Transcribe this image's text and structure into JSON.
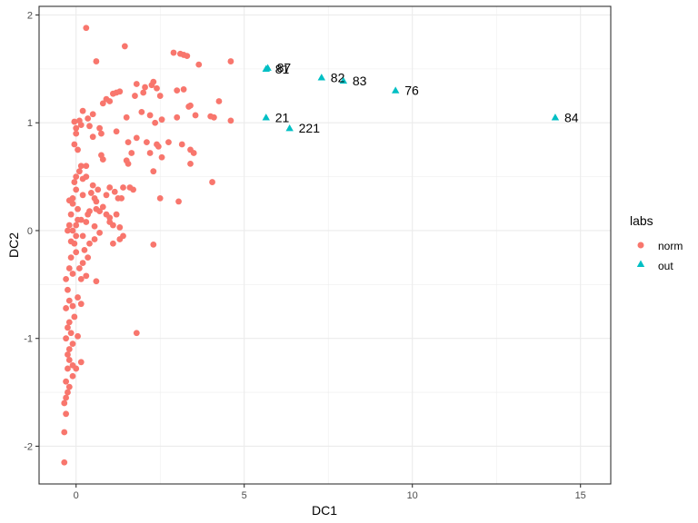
{
  "chart_data": {
    "type": "scatter",
    "xlabel": "DC1",
    "ylabel": "DC2",
    "xlim": [
      -1.1,
      15.9
    ],
    "ylim": [
      -2.35,
      2.08
    ],
    "x_ticks": [
      0,
      5,
      10,
      15
    ],
    "y_ticks": [
      -2,
      -1,
      0,
      1,
      2
    ],
    "x_tick_labels": [
      "0",
      "5",
      "10",
      "15"
    ],
    "y_tick_labels": [
      "-2",
      "-1",
      "0",
      "1",
      "2"
    ],
    "grid": true,
    "legend": {
      "title": "labs",
      "position": "right",
      "entries": [
        "norm",
        "out"
      ]
    },
    "colors": {
      "norm": "#F8766D",
      "out": "#00BFC4"
    },
    "series": [
      {
        "name": "norm",
        "marker": "circle",
        "points": [
          [
            0.3,
            1.88
          ],
          [
            1.45,
            1.71
          ],
          [
            0.6,
            1.57
          ],
          [
            2.9,
            1.65
          ],
          [
            3.1,
            1.64
          ],
          [
            3.2,
            1.63
          ],
          [
            3.3,
            1.62
          ],
          [
            4.6,
            1.57
          ],
          [
            3.65,
            1.54
          ],
          [
            1.8,
            1.36
          ],
          [
            2.05,
            1.33
          ],
          [
            2.25,
            1.35
          ],
          [
            2.3,
            1.38
          ],
          [
            2.4,
            1.32
          ],
          [
            2.0,
            1.28
          ],
          [
            2.5,
            1.25
          ],
          [
            3.0,
            1.3
          ],
          [
            3.2,
            1.31
          ],
          [
            1.3,
            1.29
          ],
          [
            1.2,
            1.28
          ],
          [
            1.1,
            1.27
          ],
          [
            0.9,
            1.22
          ],
          [
            0.8,
            1.18
          ],
          [
            1.0,
            1.2
          ],
          [
            1.75,
            1.25
          ],
          [
            4.25,
            1.2
          ],
          [
            3.35,
            1.15
          ],
          [
            3.4,
            1.16
          ],
          [
            0.2,
            1.11
          ],
          [
            0.5,
            1.08
          ],
          [
            0.35,
            1.04
          ],
          [
            0.1,
            1.02
          ],
          [
            -0.05,
            1.01
          ],
          [
            0.0,
            0.95
          ],
          [
            0.15,
            0.98
          ],
          [
            0.4,
            0.97
          ],
          [
            0.7,
            0.95
          ],
          [
            1.5,
            1.05
          ],
          [
            1.95,
            1.1
          ],
          [
            2.2,
            1.07
          ],
          [
            2.55,
            1.03
          ],
          [
            3.0,
            1.05
          ],
          [
            3.55,
            1.07
          ],
          [
            4.0,
            1.06
          ],
          [
            4.1,
            1.05
          ],
          [
            4.6,
            1.02
          ],
          [
            2.35,
            1.0
          ],
          [
            0.0,
            0.9
          ],
          [
            0.5,
            0.87
          ],
          [
            0.75,
            0.9
          ],
          [
            1.2,
            0.92
          ],
          [
            2.1,
            0.82
          ],
          [
            2.4,
            0.8
          ],
          [
            2.45,
            0.78
          ],
          [
            2.75,
            0.82
          ],
          [
            3.15,
            0.8
          ],
          [
            3.4,
            0.75
          ],
          [
            3.5,
            0.72
          ],
          [
            2.55,
            0.68
          ],
          [
            2.2,
            0.72
          ],
          [
            1.8,
            0.86
          ],
          [
            1.55,
            0.82
          ],
          [
            1.65,
            0.72
          ],
          [
            1.5,
            0.65
          ],
          [
            1.55,
            0.62
          ],
          [
            2.3,
            0.55
          ],
          [
            3.4,
            0.62
          ],
          [
            -0.05,
            0.8
          ],
          [
            0.05,
            0.75
          ],
          [
            0.8,
            0.66
          ],
          [
            0.75,
            0.7
          ],
          [
            0.1,
            0.55
          ],
          [
            0.15,
            0.6
          ],
          [
            0.3,
            0.6
          ],
          [
            0.0,
            0.5
          ],
          [
            -0.05,
            0.45
          ],
          [
            0.2,
            0.48
          ],
          [
            0.3,
            0.5
          ],
          [
            0.5,
            0.42
          ],
          [
            0.0,
            0.38
          ],
          [
            -0.1,
            0.3
          ],
          [
            0.2,
            0.33
          ],
          [
            0.45,
            0.35
          ],
          [
            0.55,
            0.3
          ],
          [
            1.0,
            0.4
          ],
          [
            1.15,
            0.36
          ],
          [
            1.4,
            0.4
          ],
          [
            1.25,
            0.3
          ],
          [
            1.35,
            0.3
          ],
          [
            1.7,
            0.38
          ],
          [
            1.6,
            0.4
          ],
          [
            3.05,
            0.27
          ],
          [
            2.5,
            0.3
          ],
          [
            4.05,
            0.45
          ],
          [
            0.6,
            0.2
          ],
          [
            0.8,
            0.22
          ],
          [
            0.7,
            0.18
          ],
          [
            0.9,
            0.15
          ],
          [
            1.0,
            0.12
          ],
          [
            0.35,
            0.15
          ],
          [
            0.4,
            0.18
          ],
          [
            0.05,
            0.2
          ],
          [
            -0.1,
            0.25
          ],
          [
            -0.2,
            0.28
          ],
          [
            -0.15,
            0.15
          ],
          [
            0.05,
            0.1
          ],
          [
            0.15,
            0.1
          ],
          [
            0.3,
            0.08
          ],
          [
            0.55,
            0.04
          ],
          [
            1.1,
            0.05
          ],
          [
            1.0,
            0.08
          ],
          [
            1.3,
            0.03
          ],
          [
            0.7,
            -0.02
          ],
          [
            0.55,
            -0.08
          ],
          [
            0.4,
            -0.12
          ],
          [
            0.2,
            -0.05
          ],
          [
            0.0,
            -0.05
          ],
          [
            -0.15,
            -0.1
          ],
          [
            -0.25,
            0.0
          ],
          [
            -0.2,
            0.05
          ],
          [
            -0.1,
            0.0
          ],
          [
            1.4,
            -0.05
          ],
          [
            1.1,
            -0.12
          ],
          [
            1.3,
            -0.08
          ],
          [
            2.3,
            -0.13
          ],
          [
            0.35,
            -0.25
          ],
          [
            0.2,
            -0.3
          ],
          [
            0.0,
            -0.2
          ],
          [
            -0.15,
            -0.25
          ],
          [
            -0.2,
            -0.35
          ],
          [
            -0.1,
            -0.4
          ],
          [
            0.15,
            -0.45
          ],
          [
            0.3,
            -0.42
          ],
          [
            -0.3,
            -0.45
          ],
          [
            -0.25,
            -0.55
          ],
          [
            -0.2,
            -0.65
          ],
          [
            -0.1,
            -0.7
          ],
          [
            -0.3,
            -0.72
          ],
          [
            0.05,
            -0.62
          ],
          [
            0.6,
            -0.47
          ],
          [
            0.15,
            -0.68
          ],
          [
            -0.2,
            -0.85
          ],
          [
            -0.25,
            -0.9
          ],
          [
            -0.15,
            -0.95
          ],
          [
            -0.3,
            -1.0
          ],
          [
            -0.1,
            -1.05
          ],
          [
            -0.2,
            -1.1
          ],
          [
            -0.25,
            -1.15
          ],
          [
            -0.2,
            -1.2
          ],
          [
            -0.1,
            -1.25
          ],
          [
            0.0,
            -1.28
          ],
          [
            0.15,
            -1.22
          ],
          [
            -0.25,
            -1.28
          ],
          [
            -0.3,
            -1.4
          ],
          [
            -0.25,
            -1.5
          ],
          [
            -0.3,
            -1.55
          ],
          [
            -0.35,
            -1.6
          ],
          [
            -0.3,
            -1.7
          ],
          [
            -0.35,
            -1.87
          ],
          [
            -0.35,
            -2.15
          ],
          [
            1.8,
            -0.95
          ],
          [
            0.0,
            0.05
          ],
          [
            -0.05,
            -0.12
          ],
          [
            0.1,
            -0.35
          ],
          [
            0.25,
            -0.18
          ],
          [
            -0.05,
            -0.8
          ],
          [
            0.05,
            -0.98
          ],
          [
            -0.1,
            -1.35
          ],
          [
            -0.2,
            -1.45
          ],
          [
            0.9,
            0.33
          ],
          [
            0.6,
            0.27
          ],
          [
            0.65,
            0.38
          ],
          [
            1.2,
            0.15
          ]
        ]
      },
      {
        "name": "out",
        "marker": "triangle",
        "points": [
          {
            "x": 5.7,
            "y": 1.51,
            "label": "87"
          },
          {
            "x": 5.65,
            "y": 1.5,
            "label": "81"
          },
          {
            "x": 7.3,
            "y": 1.42,
            "label": "82"
          },
          {
            "x": 7.95,
            "y": 1.39,
            "label": "83"
          },
          {
            "x": 9.5,
            "y": 1.3,
            "label": "76"
          },
          {
            "x": 14.25,
            "y": 1.05,
            "label": "84"
          },
          {
            "x": 5.65,
            "y": 1.05,
            "label": "21"
          },
          {
            "x": 6.35,
            "y": 0.95,
            "label": "221"
          }
        ]
      }
    ]
  }
}
